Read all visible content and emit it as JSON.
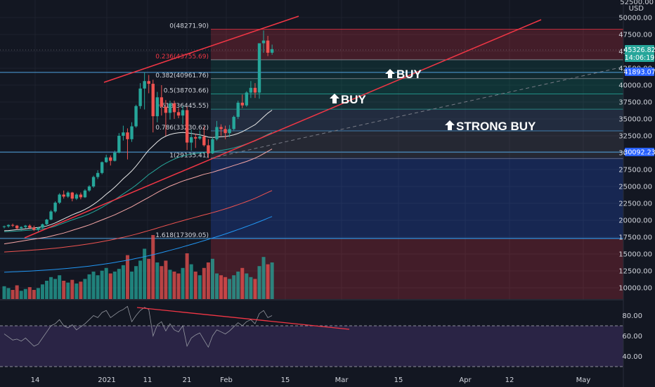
{
  "chart_data": [
    {
      "type": "candlestick",
      "title": "",
      "currency_label": "USD",
      "ylim": [
        8500,
        53500
      ],
      "y_ticks": [
        "50000.00",
        "47500.00",
        "45000.00",
        "42500.00",
        "40000.00",
        "37500.00",
        "35000.00",
        "32500.00",
        "30000.00",
        "27500.00",
        "25000.00",
        "22500.00",
        "20000.00",
        "17500.00",
        "15000.00",
        "12500.00",
        "10000.00"
      ],
      "y_top_cut": "52500.00",
      "x_ticks": [
        "14",
        "2021",
        "11",
        "21",
        "Feb",
        "15",
        "Mar",
        "15",
        "Apr",
        "12",
        "May"
      ],
      "price_tag": {
        "value": "45326.82",
        "countdown": "14:06:19",
        "color": "#26a69a"
      },
      "level_tags": [
        {
          "value": "41893.07",
          "color": "#2962ff"
        },
        {
          "value": "30092.23",
          "color": "#2962ff"
        }
      ],
      "horizontal_lines": [
        41893.07,
        30092.23,
        17309.05
      ],
      "fibonacci": [
        {
          "label": "0(48271.90)",
          "value": 48271.9
        },
        {
          "label": "0.236(43755.69)",
          "value": 43755.69
        },
        {
          "label": "0.382(40961.76)",
          "value": 40961.76
        },
        {
          "label": "0.5(38703.66)",
          "value": 38703.66
        },
        {
          "label": "0.618(36445.55)",
          "value": 36445.55
        },
        {
          "label": "0.786(33230.62)",
          "value": 33230.62
        },
        {
          "label": "1(29135.41)",
          "value": 29135.41
        },
        {
          "label": "1.618(17309.05)",
          "value": 17309.05
        }
      ],
      "annotations": [
        {
          "text": "BUY",
          "at": 41893.07
        },
        {
          "text": "BUY",
          "at": 38703.66
        },
        {
          "text": "STRONG BUY",
          "at": 33230.62
        }
      ],
      "candles": [
        [
          19000,
          19200,
          18800,
          19100
        ],
        [
          19100,
          19400,
          18900,
          19300
        ],
        [
          19300,
          19500,
          19000,
          19200
        ],
        [
          19200,
          19300,
          18600,
          18800
        ],
        [
          18800,
          19100,
          18500,
          19000
        ],
        [
          19000,
          19300,
          18800,
          19200
        ],
        [
          19200,
          19400,
          18700,
          18900
        ],
        [
          18900,
          19200,
          18400,
          18600
        ],
        [
          18600,
          19000,
          18300,
          18900
        ],
        [
          18900,
          19500,
          18800,
          19400
        ],
        [
          19400,
          20200,
          19300,
          20100
        ],
        [
          20100,
          21500,
          20000,
          21300
        ],
        [
          21300,
          22800,
          21100,
          22600
        ],
        [
          22600,
          24000,
          22400,
          23800
        ],
        [
          23800,
          24400,
          23200,
          23500
        ],
        [
          23500,
          24300,
          23300,
          24100
        ],
        [
          24100,
          24200,
          22800,
          23200
        ],
        [
          23200,
          24000,
          23000,
          23800
        ],
        [
          23800,
          24100,
          23100,
          23400
        ],
        [
          23400,
          24600,
          23300,
          24400
        ],
        [
          24400,
          25200,
          24200,
          25000
        ],
        [
          25000,
          26600,
          24800,
          26400
        ],
        [
          26400,
          27400,
          26100,
          27000
        ],
        [
          27000,
          28700,
          26800,
          28600
        ],
        [
          28600,
          29700,
          28500,
          29300
        ],
        [
          29300,
          29600,
          28100,
          28800
        ],
        [
          28800,
          30300,
          28700,
          30000
        ],
        [
          30000,
          32900,
          29900,
          32500
        ],
        [
          32500,
          34000,
          31800,
          33000
        ],
        [
          33000,
          33600,
          29000,
          32000
        ],
        [
          32000,
          34500,
          31600,
          33900
        ],
        [
          33900,
          37100,
          33700,
          36900
        ],
        [
          36900,
          40300,
          36500,
          39500
        ],
        [
          39500,
          41900,
          36400,
          40600
        ],
        [
          40600,
          41500,
          38800,
          40200
        ],
        [
          40200,
          40800,
          33000,
          35400
        ],
        [
          35400,
          39000,
          34500,
          38200
        ],
        [
          38200,
          40000,
          35500,
          36800
        ],
        [
          36800,
          37800,
          32500,
          35900
        ],
        [
          35900,
          37700,
          34900,
          37300
        ],
        [
          37300,
          37700,
          35000,
          36000
        ],
        [
          36000,
          36600,
          35100,
          35500
        ],
        [
          35500,
          36900,
          34200,
          36300
        ],
        [
          36300,
          36800,
          30400,
          31500
        ],
        [
          31500,
          33400,
          30300,
          32300
        ],
        [
          32300,
          32800,
          30700,
          32100
        ],
        [
          32100,
          33300,
          31900,
          32400
        ],
        [
          32400,
          33900,
          30900,
          31100
        ],
        [
          31100,
          32000,
          29200,
          29900
        ],
        [
          29900,
          32300,
          29800,
          32000
        ],
        [
          32000,
          34700,
          31800,
          33800
        ],
        [
          33800,
          34200,
          32500,
          33500
        ],
        [
          33500,
          34000,
          32000,
          32900
        ],
        [
          32900,
          34100,
          32300,
          33500
        ],
        [
          33500,
          35500,
          33300,
          35300
        ],
        [
          35300,
          37700,
          35000,
          37400
        ],
        [
          37400,
          38600,
          36600,
          37000
        ],
        [
          37000,
          39100,
          36800,
          38900
        ],
        [
          38900,
          40600,
          38100,
          39600
        ],
        [
          39600,
          40300,
          38100,
          38900
        ],
        [
          38900,
          46200,
          38000,
          46200
        ],
        [
          46200,
          48100,
          44800,
          46600
        ],
        [
          46600,
          47300,
          44300,
          44800
        ],
        [
          44800,
          46000,
          44500,
          45326.82
        ]
      ],
      "volumes": [
        14,
        12,
        10,
        15,
        9,
        11,
        13,
        10,
        12,
        16,
        20,
        24,
        22,
        26,
        20,
        18,
        21,
        17,
        19,
        22,
        27,
        30,
        26,
        31,
        34,
        28,
        30,
        33,
        37,
        48,
        30,
        36,
        42,
        55,
        44,
        70,
        40,
        36,
        42,
        32,
        30,
        28,
        34,
        50,
        38,
        30,
        26,
        34,
        40,
        44,
        28,
        26,
        24,
        22,
        26,
        30,
        34,
        28,
        24,
        22,
        36,
        46,
        38,
        40
      ],
      "ma_series": [
        {
          "color": "#e8e8e8",
          "values": [
            18450,
            18480,
            18540,
            18600,
            18650,
            18720,
            18800,
            18870,
            18930,
            19020,
            19150,
            19350,
            19600,
            19900,
            20200,
            20500,
            20800,
            21050,
            21300,
            21600,
            21950,
            22350,
            22800,
            23300,
            23850,
            24350,
            24900,
            25500,
            26150,
            26700,
            27300,
            28000,
            28800,
            29650,
            30400,
            31000,
            31600,
            32100,
            32450,
            32700,
            32850,
            32950,
            33000,
            32950,
            32850,
            32750,
            32650,
            32500,
            32300,
            32250,
            32300,
            32350,
            32400,
            32500,
            32650,
            32850,
            33100,
            33450,
            33800,
            34150,
            34700,
            35300,
            35850,
            36300
          ]
        },
        {
          "color": "#26a69a",
          "values": [
            18300,
            18330,
            18360,
            18400,
            18440,
            18490,
            18540,
            18590,
            18640,
            18710,
            18810,
            18950,
            19130,
            19350,
            19580,
            19820,
            20050,
            20260,
            20470,
            20700,
            20950,
            21240,
            21560,
            21910,
            22290,
            22660,
            23050,
            23460,
            23900,
            24300,
            24730,
            25190,
            25700,
            26240,
            26770,
            27200,
            27640,
            28060,
            28430,
            28760,
            29050,
            29300,
            29520,
            29670,
            29790,
            29890,
            29980,
            30040,
            30060,
            30120,
            30230,
            30340,
            30440,
            30560,
            30710,
            30890,
            31080,
            31300,
            31530,
            31740,
            32050,
            32400,
            32720,
            33000
          ]
        },
        {
          "color": "#f6a6a6",
          "values": [
            16500,
            16600,
            16700,
            16800,
            16900,
            17000,
            17100,
            17200,
            17300,
            17400,
            17500,
            17650,
            17800,
            17950,
            18100,
            18300,
            18500,
            18700,
            18900,
            19100,
            19300,
            19550,
            19800,
            20050,
            20300,
            20550,
            20800,
            21100,
            21400,
            21700,
            22000,
            22350,
            22700,
            23050,
            23400,
            23750,
            24100,
            24450,
            24750,
            25050,
            25300,
            25550,
            25800,
            26000,
            26200,
            26400,
            26600,
            26800,
            26950,
            27100,
            27300,
            27500,
            27700,
            27900,
            28100,
            28300,
            28500,
            28700,
            28950,
            29200,
            29500,
            29850,
            30200,
            30550
          ]
        },
        {
          "color": "#ef5350",
          "values": [
            15300,
            15340,
            15380,
            15420,
            15460,
            15500,
            15540,
            15590,
            15640,
            15690,
            15740,
            15800,
            15860,
            15930,
            16000,
            16080,
            16160,
            16240,
            16330,
            16420,
            16510,
            16610,
            16720,
            16830,
            16950,
            17070,
            17200,
            17340,
            17480,
            17630,
            17780,
            17940,
            18110,
            18290,
            18470,
            18650,
            18840,
            19030,
            19220,
            19400,
            19580,
            19760,
            19940,
            20110,
            20280,
            20450,
            20620,
            20790,
            20950,
            21120,
            21300,
            21490,
            21680,
            21880,
            22090,
            22310,
            22530,
            22760,
            23000,
            23250,
            23530,
            23830,
            24130,
            24400
          ]
        },
        {
          "color": "#2196f3",
          "values": [
            12300,
            12330,
            12360,
            12390,
            12420,
            12450,
            12480,
            12510,
            12550,
            12590,
            12630,
            12670,
            12720,
            12770,
            12820,
            12880,
            12940,
            13000,
            13070,
            13140,
            13210,
            13290,
            13370,
            13460,
            13550,
            13650,
            13750,
            13860,
            13970,
            14090,
            14210,
            14340,
            14470,
            14610,
            14750,
            14900,
            15050,
            15210,
            15370,
            15540,
            15710,
            15880,
            16060,
            16240,
            16420,
            16600,
            16790,
            16980,
            17170,
            17360,
            17560,
            17760,
            17970,
            18180,
            18400,
            18620,
            18840,
            19070,
            19300,
            19540,
            19790,
            20040,
            20300,
            20550
          ]
        }
      ]
    },
    {
      "type": "line",
      "title": "",
      "ylim": [
        30,
        92
      ],
      "y_ticks": [
        "80.00",
        "60.00",
        "40.00"
      ],
      "band": [
        70,
        30
      ],
      "values": [
        62,
        59,
        56,
        57,
        55,
        58,
        54,
        50,
        52,
        58,
        64,
        70,
        72,
        76,
        70,
        68,
        71,
        66,
        69,
        72,
        76,
        80,
        78,
        83,
        85,
        78,
        81,
        84,
        86,
        89,
        74,
        80,
        85,
        88,
        86,
        60,
        71,
        74,
        65,
        72,
        66,
        64,
        70,
        50,
        58,
        61,
        63,
        56,
        49,
        60,
        66,
        64,
        62,
        65,
        69,
        73,
        70,
        74,
        76,
        72,
        82,
        85,
        78,
        80
      ]
    }
  ]
}
